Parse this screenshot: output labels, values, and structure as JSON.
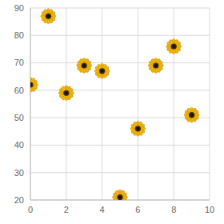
{
  "chart_data": {
    "type": "scatter",
    "x": [
      0,
      1,
      2,
      3,
      4,
      5,
      6,
      7,
      8,
      9
    ],
    "values": [
      62,
      87,
      59,
      69,
      67,
      21,
      46,
      69,
      76,
      51
    ],
    "color": "#f2b705",
    "marker": "sunflower",
    "xlim": [
      0,
      10
    ],
    "xticks": [
      0,
      2,
      4,
      6,
      8,
      10
    ],
    "ylim": [
      20,
      90
    ],
    "yticks": [
      20,
      30,
      40,
      50,
      60,
      70,
      80,
      90
    ],
    "grid": true
  }
}
